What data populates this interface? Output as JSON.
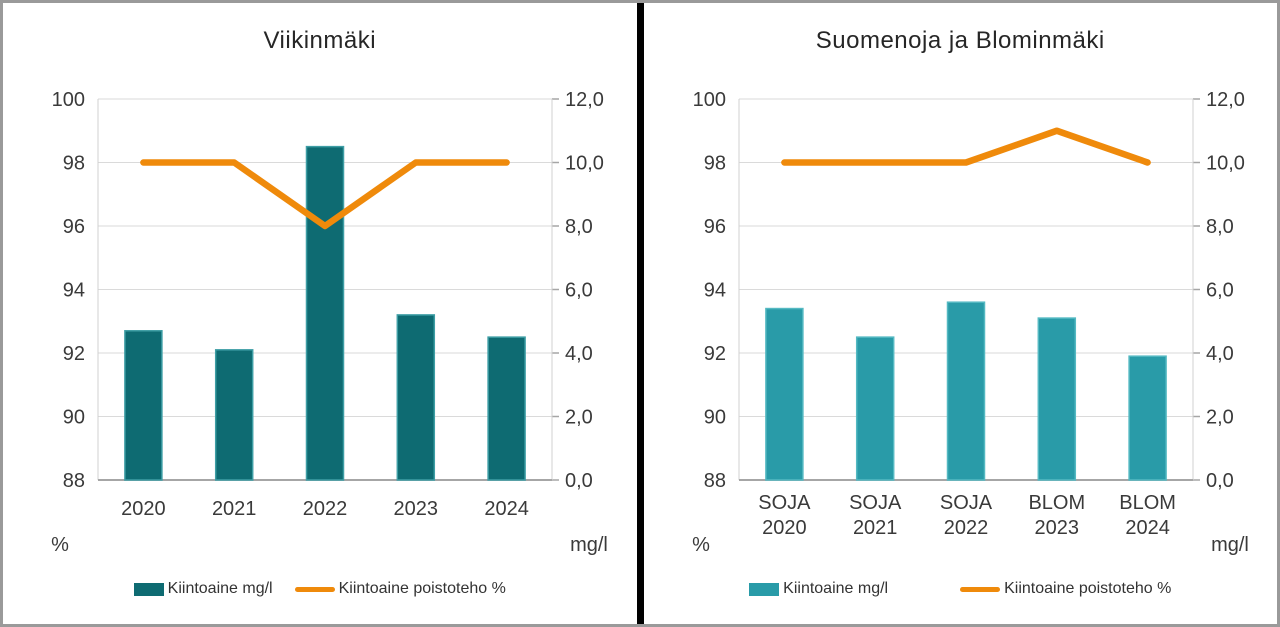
{
  "window": {
    "outer_border_color": "#9a9a9a",
    "divider_color": "#000000",
    "background": "#ffffff"
  },
  "chart_data": [
    {
      "type": "combo",
      "title": "Viikinmäki",
      "categories": [
        "2020",
        "2021",
        "2022",
        "2023",
        "2024"
      ],
      "series": [
        {
          "name": "Kiintoaine mg/l",
          "type": "bar",
          "axis": "right",
          "values": [
            4.7,
            4.1,
            10.5,
            5.2,
            4.5
          ],
          "color": "#0E6B72",
          "border_color": "#3E9EA5"
        },
        {
          "name": "Kiintoaine poistoteho %",
          "type": "line",
          "axis": "left",
          "values": [
            98,
            98,
            96,
            98,
            98
          ],
          "color": "#EF8A0B"
        }
      ],
      "left_axis": {
        "label": "%",
        "min": 88,
        "max": 100,
        "step": 2,
        "ticks": [
          "100",
          "98",
          "96",
          "94",
          "92",
          "90",
          "88"
        ]
      },
      "right_axis": {
        "label": "mg/l",
        "min": 0,
        "max": 12,
        "step": 2,
        "ticks": [
          "12,0",
          "10,0",
          "8,0",
          "6,0",
          "4,0",
          "2,0",
          "0,0"
        ]
      },
      "grid": true,
      "legend_position": "bottom"
    },
    {
      "type": "combo",
      "title": "Suomenoja ja Blominmäki",
      "categories": [
        [
          "SOJA",
          "2020"
        ],
        [
          "SOJA",
          "2021"
        ],
        [
          "SOJA",
          "2022"
        ],
        [
          "BLOM",
          "2023"
        ],
        [
          "BLOM",
          "2024"
        ]
      ],
      "series": [
        {
          "name": "Kiintoaine mg/l",
          "type": "bar",
          "axis": "right",
          "values": [
            5.4,
            4.5,
            5.6,
            5.1,
            3.9
          ],
          "color": "#299BA8",
          "border_color": "#54B9C2"
        },
        {
          "name": "Kiintoaine poistoteho %",
          "type": "line",
          "axis": "left",
          "values": [
            98,
            98,
            98,
            99,
            98
          ],
          "color": "#EF8A0B"
        }
      ],
      "left_axis": {
        "label": "%",
        "min": 88,
        "max": 100,
        "step": 2,
        "ticks": [
          "100",
          "98",
          "96",
          "94",
          "92",
          "90",
          "88"
        ]
      },
      "right_axis": {
        "label": "mg/l",
        "min": 0,
        "max": 12,
        "step": 2,
        "ticks": [
          "12,0",
          "10,0",
          "8,0",
          "6,0",
          "4,0",
          "2,0",
          "0,0"
        ]
      },
      "grid": true,
      "legend_position": "bottom"
    }
  ]
}
